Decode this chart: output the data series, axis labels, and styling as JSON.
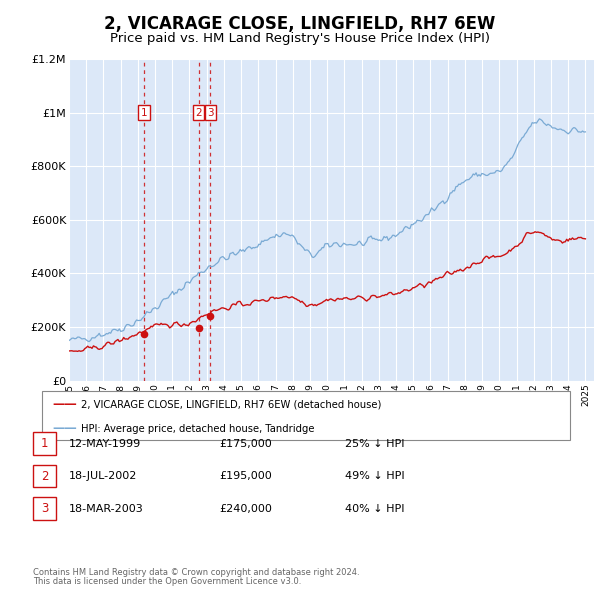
{
  "title": "2, VICARAGE CLOSE, LINGFIELD, RH7 6EW",
  "subtitle": "Price paid vs. HM Land Registry's House Price Index (HPI)",
  "title_fontsize": 12,
  "subtitle_fontsize": 9.5,
  "background_color": "#ffffff",
  "plot_background_color": "#dce8f8",
  "grid_color": "#ffffff",
  "hpi_color": "#7aaad4",
  "price_color": "#cc1111",
  "ylim": [
    0,
    1200000
  ],
  "yticks": [
    0,
    200000,
    400000,
    600000,
    800000,
    1000000,
    1200000
  ],
  "ytick_labels": [
    "£0",
    "£200K",
    "£400K",
    "£600K",
    "£800K",
    "£1M",
    "£1.2M"
  ],
  "legend_label_price": "2, VICARAGE CLOSE, LINGFIELD, RH7 6EW (detached house)",
  "legend_label_hpi": "HPI: Average price, detached house, Tandridge",
  "transactions": [
    {
      "id": 1,
      "date": "12-MAY-1999",
      "year": 1999.36,
      "price": 175000,
      "pct": "25%",
      "dir": "↓"
    },
    {
      "id": 2,
      "date": "18-JUL-2002",
      "year": 2002.54,
      "price": 195000,
      "pct": "49%",
      "dir": "↓"
    },
    {
      "id": 3,
      "date": "18-MAR-2003",
      "year": 2003.21,
      "price": 240000,
      "pct": "40%",
      "dir": "↓"
    }
  ],
  "footer_line1": "Contains HM Land Registry data © Crown copyright and database right 2024.",
  "footer_line2": "This data is licensed under the Open Government Licence v3.0.",
  "xmin": 1995.0,
  "xmax": 2025.5,
  "hpi_anchors_x": [
    1995,
    1996,
    1997,
    1998,
    1999,
    2000,
    2001,
    2002,
    2003,
    2004,
    2005,
    2006,
    2007,
    2008,
    2009,
    2010,
    2011,
    2012,
    2013,
    2014,
    2015,
    2016,
    2017,
    2018,
    2019,
    2020,
    2021,
    2022,
    2023,
    2024,
    2025
  ],
  "hpi_anchors_y": [
    148000,
    160000,
    175000,
    195000,
    225000,
    270000,
    320000,
    370000,
    420000,
    455000,
    480000,
    510000,
    540000,
    535000,
    470000,
    500000,
    510000,
    510000,
    525000,
    545000,
    585000,
    625000,
    690000,
    745000,
    770000,
    780000,
    860000,
    960000,
    950000,
    935000,
    930000
  ],
  "price_anchors_x": [
    1995,
    1996,
    1997,
    1998,
    1999,
    2000,
    2001,
    2002,
    2003,
    2004,
    2005,
    2006,
    2007,
    2008,
    2009,
    2010,
    2011,
    2012,
    2013,
    2014,
    2015,
    2016,
    2017,
    2018,
    2019,
    2020,
    2021,
    2022,
    2023,
    2024,
    2025
  ],
  "price_anchors_y": [
    105000,
    115000,
    130000,
    150000,
    175000,
    200000,
    210000,
    215000,
    250000,
    270000,
    285000,
    295000,
    310000,
    310000,
    285000,
    300000,
    305000,
    308000,
    315000,
    325000,
    345000,
    365000,
    395000,
    420000,
    450000,
    465000,
    505000,
    555000,
    530000,
    525000,
    530000
  ],
  "noise_seed": 42,
  "hpi_noise": 12000,
  "price_noise": 8000
}
